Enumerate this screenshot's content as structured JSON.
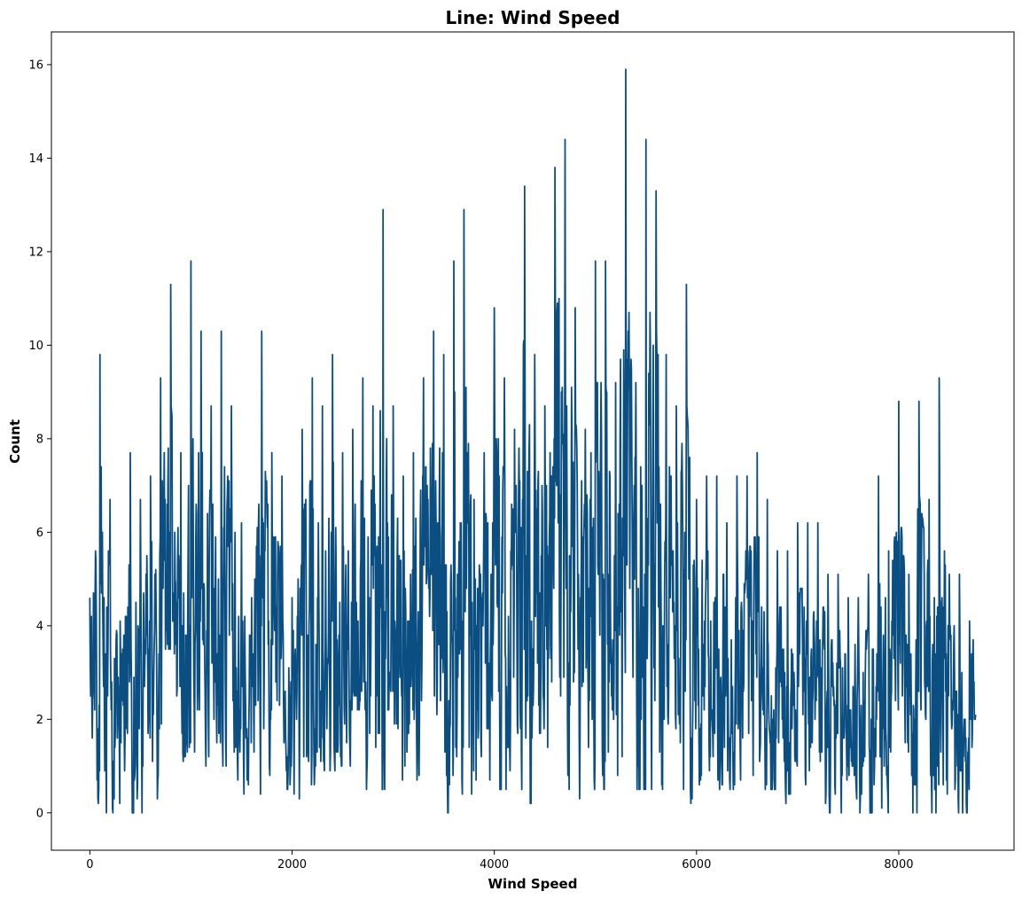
{
  "chart_data": {
    "type": "line",
    "title": "Line: Wind Speed",
    "xlabel": "Wind Speed",
    "ylabel": "Count",
    "xlim": [
      -380,
      9140
    ],
    "ylim": [
      -0.8,
      16.7
    ],
    "x_ticks": [
      0,
      2000,
      4000,
      6000,
      8000
    ],
    "y_ticks": [
      0,
      2,
      4,
      6,
      8,
      10,
      12,
      14,
      16
    ],
    "x_tick_labels": [
      "0",
      "2000",
      "4000",
      "6000",
      "8000"
    ],
    "y_tick_labels": [
      "0",
      "2",
      "4",
      "6",
      "8",
      "10",
      "12",
      "14",
      "16"
    ],
    "grid": false,
    "legend": "none",
    "series": [
      {
        "color": "#0b4f82",
        "x": [
          0,
          100,
          200,
          300,
          400,
          500,
          600,
          700,
          800,
          900,
          1000,
          1100,
          1200,
          1300,
          1400,
          1500,
          1600,
          1700,
          1800,
          1900,
          2000,
          2100,
          2200,
          2300,
          2400,
          2500,
          2600,
          2700,
          2800,
          2900,
          3000,
          3100,
          3200,
          3300,
          3400,
          3500,
          3600,
          3700,
          3800,
          3900,
          4000,
          4100,
          4200,
          4300,
          4400,
          4500,
          4600,
          4700,
          4800,
          4900,
          5000,
          5100,
          5200,
          5300,
          5400,
          5500,
          5600,
          5700,
          5800,
          5900,
          6000,
          6100,
          6200,
          6300,
          6400,
          6500,
          6600,
          6700,
          6800,
          6900,
          7000,
          7100,
          7200,
          7300,
          7400,
          7500,
          7600,
          7700,
          7800,
          7900,
          8000,
          8100,
          8200,
          8300,
          8400,
          8500,
          8600,
          8700,
          8760
        ],
        "values": [
          4.6,
          9.8,
          6.7,
          4.1,
          7.7,
          6.7,
          7.2,
          9.3,
          11.3,
          7.7,
          11.8,
          10.3,
          8.7,
          10.3,
          8.7,
          6.2,
          4.6,
          10.3,
          7.7,
          7.2,
          4.6,
          8.2,
          9.3,
          8.7,
          9.8,
          7.7,
          8.2,
          9.3,
          8.7,
          12.9,
          8.7,
          7.2,
          7.7,
          9.3,
          10.3,
          9.8,
          11.8,
          12.9,
          6.7,
          7.7,
          10.8,
          9.3,
          8.2,
          13.4,
          9.8,
          8.7,
          13.8,
          14.4,
          10.8,
          8.2,
          11.8,
          11.8,
          9.2,
          15.9,
          9.2,
          14.4,
          13.3,
          9.8,
          8.7,
          11.3,
          6.7,
          7.2,
          7.2,
          6.2,
          7.2,
          7.2,
          7.7,
          6.7,
          5.6,
          5.6,
          6.2,
          6.2,
          6.2,
          5.1,
          5.1,
          4.6,
          4.6,
          5.1,
          7.2,
          5.6,
          8.8,
          5.1,
          8.8,
          6.7,
          9.3,
          5.1,
          5.1,
          4.1,
          5.1
        ],
        "lows": [
          1.5,
          0.0,
          0.0,
          0.0,
          0.0,
          0.0,
          0.0,
          0.5,
          1.5,
          1.0,
          1.5,
          1.0,
          1.0,
          1.0,
          1.0,
          0.5,
          0.0,
          0.5,
          0.0,
          0.5,
          0.5,
          0.0,
          0.5,
          1.0,
          0.5,
          1.0,
          1.0,
          0.5,
          0.5,
          0.5,
          0.5,
          0.5,
          0.5,
          1.0,
          0.5,
          0.0,
          0.0,
          0.5,
          0.0,
          0.5,
          0.5,
          0.5,
          0.5,
          0.5,
          0.0,
          0.5,
          0.0,
          0.5,
          0.5,
          0.0,
          0.5,
          0.5,
          0.5,
          0.5,
          0.5,
          0.5,
          0.5,
          0.5,
          1.5,
          0.0,
          0.5,
          1.0,
          0.5,
          0.5,
          0.5,
          0.0,
          0.5,
          0.5,
          0.5,
          0.2,
          1.0,
          0.5,
          0.5,
          0.0,
          0.0,
          0.0,
          0.0,
          0.0,
          0.0,
          0.0,
          0.0,
          0.0,
          0.0,
          0.0,
          0.0,
          0.0,
          0.0,
          0.0,
          0.5
        ],
        "start_value": 4.6,
        "end_value": 2.1
      }
    ]
  }
}
